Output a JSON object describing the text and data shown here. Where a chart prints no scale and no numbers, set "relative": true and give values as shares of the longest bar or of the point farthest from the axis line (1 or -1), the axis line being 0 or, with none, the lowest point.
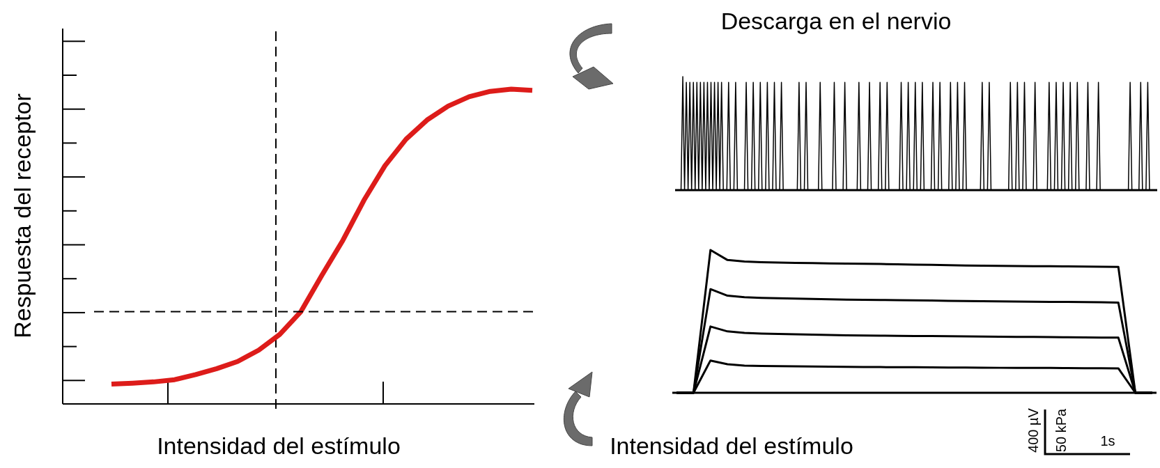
{
  "chart_data": [
    {
      "type": "line",
      "xlabel": "Intensidad del estímulo",
      "ylabel": "Respuesta del receptor",
      "relative": true,
      "categories": [
        null,
        null,
        null,
        null,
        null,
        null,
        null,
        null,
        null,
        null,
        null,
        null,
        null,
        null,
        null,
        null,
        null,
        null,
        null,
        null,
        null
      ],
      "series": [
        {
          "color": "#dd1c1a",
          "values": [
            0.063,
            0.066,
            0.07,
            0.077,
            0.093,
            0.112,
            0.135,
            0.171,
            0.221,
            0.293,
            0.409,
            0.52,
            0.647,
            0.757,
            0.841,
            0.902,
            0.946,
            0.976,
            0.993,
            1,
            0.996
          ]
        }
      ],
      "ref_lines": [
        {
          "axis": "y",
          "value": 0.293,
          "color": "#000000",
          "line_style": "dashed"
        }
      ]
    },
    {
      "type": "line",
      "title": "Descarga en el nervio",
      "relative": true,
      "categories": [
        null,
        null,
        null,
        null,
        null,
        null,
        null,
        null,
        null,
        null,
        null,
        null,
        null,
        null,
        null,
        null,
        null,
        null,
        null,
        null,
        null,
        null,
        null,
        null,
        null,
        null,
        null,
        null,
        null,
        null,
        null,
        null,
        null,
        null,
        null,
        null,
        null,
        null,
        null,
        null,
        null,
        null,
        null,
        null,
        null,
        null,
        null,
        null,
        null,
        null,
        null,
        null,
        null,
        null,
        null,
        null,
        null,
        null,
        null,
        null,
        null,
        null,
        null,
        null,
        null,
        null,
        null,
        null,
        null,
        null,
        null,
        null,
        null,
        null,
        null,
        null,
        null,
        null,
        null,
        null,
        null,
        null,
        null,
        null,
        null,
        null,
        null,
        null,
        null,
        null,
        null,
        null,
        null,
        null,
        null,
        null,
        null,
        null,
        null,
        null,
        null,
        null,
        null,
        null,
        null,
        null,
        null,
        null,
        null,
        null,
        null,
        null,
        null,
        null,
        null,
        null,
        null,
        null,
        null,
        null,
        null,
        null,
        null,
        null,
        null,
        null,
        null,
        null,
        null,
        null,
        null,
        null,
        null,
        null,
        null,
        null,
        null,
        null,
        null,
        null,
        null,
        null,
        null,
        null,
        null,
        null,
        null,
        null,
        null,
        null,
        null,
        null,
        null,
        null,
        null,
        null,
        null,
        null,
        null,
        null,
        null,
        null,
        null,
        null,
        null,
        null,
        null,
        null,
        null,
        null,
        null,
        null,
        null,
        null,
        null,
        null,
        null,
        null,
        null,
        null,
        null,
        null,
        null,
        null,
        null,
        null,
        null,
        null,
        null,
        null,
        null,
        null,
        null,
        null,
        null,
        null,
        null,
        null,
        null,
        null,
        null,
        null,
        null,
        null,
        null,
        null,
        null,
        null,
        null,
        null,
        null,
        null,
        null,
        null,
        null,
        null,
        null,
        null,
        null,
        null,
        null,
        null,
        null,
        null,
        null,
        null,
        null,
        null,
        null,
        null,
        null,
        null,
        null,
        null,
        null,
        null,
        null,
        null,
        null,
        null,
        null,
        null,
        null,
        null,
        null,
        null,
        null,
        null,
        null,
        null,
        null,
        null,
        null,
        null,
        null,
        null,
        null,
        null,
        null,
        null,
        null,
        null,
        null,
        null,
        null,
        null,
        null,
        null,
        null,
        null
      ],
      "series": [
        {
          "color": "#000000",
          "values": [
            0,
            0,
            1,
            0,
            0.95,
            0,
            0.95,
            0,
            0.95,
            0,
            0.95,
            0,
            0.95,
            0,
            0.95,
            0,
            0.95,
            0,
            0.95,
            0,
            0.95,
            0,
            0.95,
            0,
            0.95,
            0,
            0,
            0,
            0.95,
            0,
            0,
            0,
            0.95,
            0,
            0,
            0,
            0,
            0,
            0.95,
            0,
            0,
            0,
            0.95,
            0,
            0,
            0,
            0.95,
            0,
            0,
            0,
            0.95,
            0,
            0,
            0,
            0.95,
            0,
            0,
            0,
            0.95,
            0,
            0,
            0,
            0,
            0,
            0,
            0,
            0,
            0,
            0.95,
            0,
            0,
            0,
            0.95,
            0,
            0,
            0,
            0,
            0,
            0,
            0,
            0.95,
            0,
            0,
            0,
            0,
            0,
            0,
            0,
            0.95,
            0,
            0,
            0,
            0,
            0,
            0.95,
            0,
            0,
            0,
            0,
            0,
            0,
            0,
            0.95,
            0,
            0,
            0,
            0,
            0,
            0.95,
            0,
            0,
            0,
            0,
            0,
            0.95,
            0,
            0,
            0,
            0.95,
            0,
            0,
            0,
            0,
            0,
            0,
            0,
            0.95,
            0,
            0,
            0,
            0.95,
            0,
            0,
            0,
            0.95,
            0,
            0,
            0,
            0.95,
            0,
            0,
            0,
            0,
            0,
            0.95,
            0,
            0,
            0,
            0.95,
            0,
            0,
            0,
            0,
            0,
            0.95,
            0,
            0,
            0,
            0.95,
            0,
            0,
            0,
            0.95,
            0,
            0,
            0,
            0,
            0,
            0,
            0,
            0,
            0,
            0.95,
            0,
            0,
            0,
            0.95,
            0,
            0,
            0,
            0,
            0,
            0,
            0,
            0,
            0,
            0,
            0,
            0.95,
            0,
            0,
            0,
            0.95,
            0,
            0,
            0,
            0.95,
            0,
            0,
            0,
            0,
            0,
            0.95,
            0,
            0,
            0,
            0,
            0,
            0,
            0,
            0.95,
            0,
            0,
            0,
            0.95,
            0,
            0,
            0,
            0.95,
            0,
            0,
            0,
            0.95,
            0,
            0,
            0,
            0.95,
            0,
            0,
            0,
            0,
            0,
            0.95,
            0,
            0,
            0,
            0,
            0,
            0.95,
            0,
            0,
            0,
            0,
            0,
            0,
            0,
            0,
            0,
            0,
            0,
            0,
            0,
            0,
            0,
            0,
            0,
            0.95,
            0,
            0,
            0,
            0,
            0,
            0.95,
            0,
            0,
            0,
            0.95,
            0,
            0,
            0
          ]
        }
      ]
    },
    {
      "type": "line",
      "xlabel": "Intensidad del estímulo",
      "relative": true,
      "annotations": [
        "400 µV",
        "50 kPa",
        "1s"
      ],
      "categories": [
        null,
        null,
        null,
        null,
        null,
        null,
        null,
        null,
        null,
        null,
        null,
        null,
        null,
        null,
        null,
        null,
        null,
        null,
        null,
        null,
        null,
        null,
        null,
        null,
        null,
        null,
        null,
        null,
        null
      ],
      "series": [
        {
          "color": "#000000",
          "values": [
            0,
            0,
            1,
            0.93,
            0.92,
            0.915,
            0.912,
            0.91,
            0.908,
            0.906,
            0.905,
            0.904,
            0.902,
            0.9,
            0.898,
            0.896,
            0.894,
            0.892,
            0.89,
            0.889,
            0.888,
            0.887,
            0.886,
            0.885,
            0.884,
            0.883,
            0.882,
            0,
            0
          ]
        },
        {
          "color": "#000000",
          "values": [
            0,
            0,
            0.726,
            0.68,
            0.67,
            0.665,
            0.662,
            0.66,
            0.657,
            0.655,
            0.653,
            0.651,
            0.65,
            0.649,
            0.647,
            0.646,
            0.644,
            0.643,
            0.641,
            0.64,
            0.639,
            0.638,
            0.637,
            0.636,
            0.635,
            0.634,
            0.632,
            0,
            0
          ]
        },
        {
          "color": "#000000",
          "values": [
            0,
            0,
            0.464,
            0.43,
            0.42,
            0.415,
            0.412,
            0.41,
            0.407,
            0.405,
            0.403,
            0.401,
            0.4,
            0.399,
            0.398,
            0.397,
            0.396,
            0.395,
            0.394,
            0.393,
            0.392,
            0.391,
            0.39,
            0.389,
            0.388,
            0.387,
            0.386,
            0,
            0
          ]
        },
        {
          "color": "#000000",
          "values": [
            0,
            0,
            0.226,
            0.2,
            0.19,
            0.188,
            0.186,
            0.185,
            0.184,
            0.183,
            0.182,
            0.181,
            0.18,
            0.179,
            0.179,
            0.178,
            0.177,
            0.177,
            0.176,
            0.175,
            0.175,
            0.174,
            0.174,
            0.173,
            0.172,
            0.172,
            0.171,
            0,
            0
          ]
        }
      ]
    }
  ]
}
